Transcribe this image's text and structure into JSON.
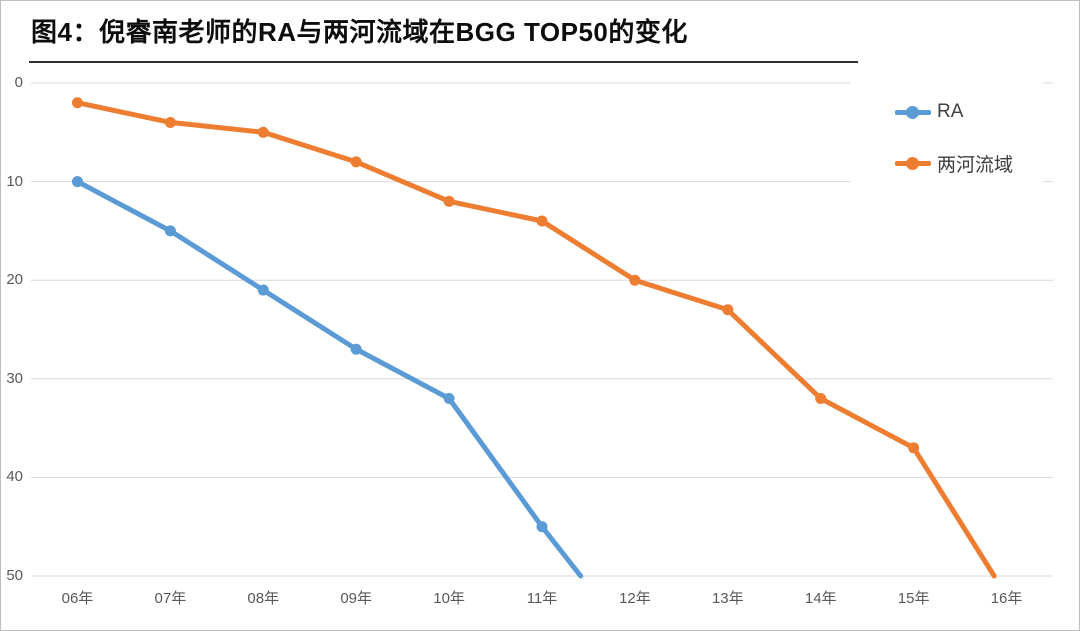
{
  "header": {
    "title": "图4：倪睿南老师的RA与两河流域在BGG TOP50的变化"
  },
  "chart_data": {
    "type": "line",
    "title": "图4：倪睿南老师的RA与两河流域在BGG TOP50的变化",
    "categories": [
      "06年",
      "07年",
      "08年",
      "09年",
      "10年",
      "11年",
      "12年",
      "13年",
      "14年",
      "15年",
      "16年"
    ],
    "series": [
      {
        "name": "RA",
        "color": "#5B9BD5",
        "values": [
          10,
          15,
          21,
          27,
          32,
          45,
          57,
          null,
          null,
          null,
          null
        ]
      },
      {
        "name": "两河流域",
        "color": "#ED7D31",
        "values": [
          2,
          4,
          5,
          8,
          12,
          14,
          20,
          23,
          32,
          37,
          52
        ]
      }
    ],
    "y_ticks": [
      0,
      10,
      20,
      30,
      40,
      50
    ],
    "ylim": [
      0,
      50
    ],
    "y_axis_inverted": true,
    "clip_at_ylim": true,
    "grid": true,
    "legend_position": "right-inside"
  },
  "styles": {
    "gridline_color": "#d9d9d9",
    "axis_label_color": "#595959",
    "legend_text_color": "#404040",
    "separator_color": "#303030",
    "frame_border_color": "#bdbdbd",
    "background": "#ffffff"
  }
}
